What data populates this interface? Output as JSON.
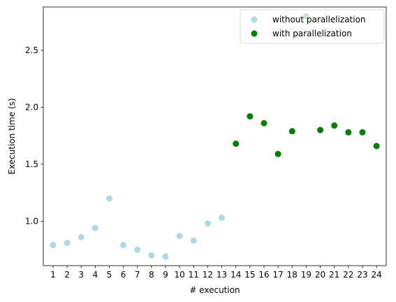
{
  "chart_data": {
    "type": "scatter",
    "title": "",
    "xlabel": "# execution",
    "ylabel": "Execution time (s)",
    "xlim": [
      0.31,
      24.69
    ],
    "ylim": [
      0.61,
      2.88
    ],
    "xticks": [
      "1",
      "2",
      "3",
      "4",
      "5",
      "6",
      "7",
      "8",
      "9",
      "10",
      "11",
      "12",
      "13",
      "14",
      "15",
      "16",
      "17",
      "18",
      "19",
      "20",
      "21",
      "22",
      "23",
      "24"
    ],
    "yticks": [
      "1.0",
      "1.5",
      "2.0",
      "2.5"
    ],
    "grid": false,
    "legend_position": "top-right",
    "series": [
      {
        "name": "without parallelization",
        "color": "#add8e6",
        "x": [
          1,
          2,
          3,
          4,
          5,
          6,
          7,
          8,
          9,
          10,
          11,
          12,
          13
        ],
        "y": [
          0.79,
          0.81,
          0.86,
          0.94,
          1.2,
          0.79,
          0.75,
          0.7,
          0.69,
          0.87,
          0.83,
          0.98,
          1.03
        ]
      },
      {
        "name": "with parallelization",
        "color": "#008000",
        "x": [
          14,
          15,
          16,
          17,
          18,
          19,
          20,
          21,
          22,
          23,
          24
        ],
        "y": [
          1.68,
          1.92,
          1.86,
          1.59,
          1.79,
          2.8,
          1.8,
          1.84,
          1.78,
          1.78,
          1.66
        ]
      }
    ]
  }
}
